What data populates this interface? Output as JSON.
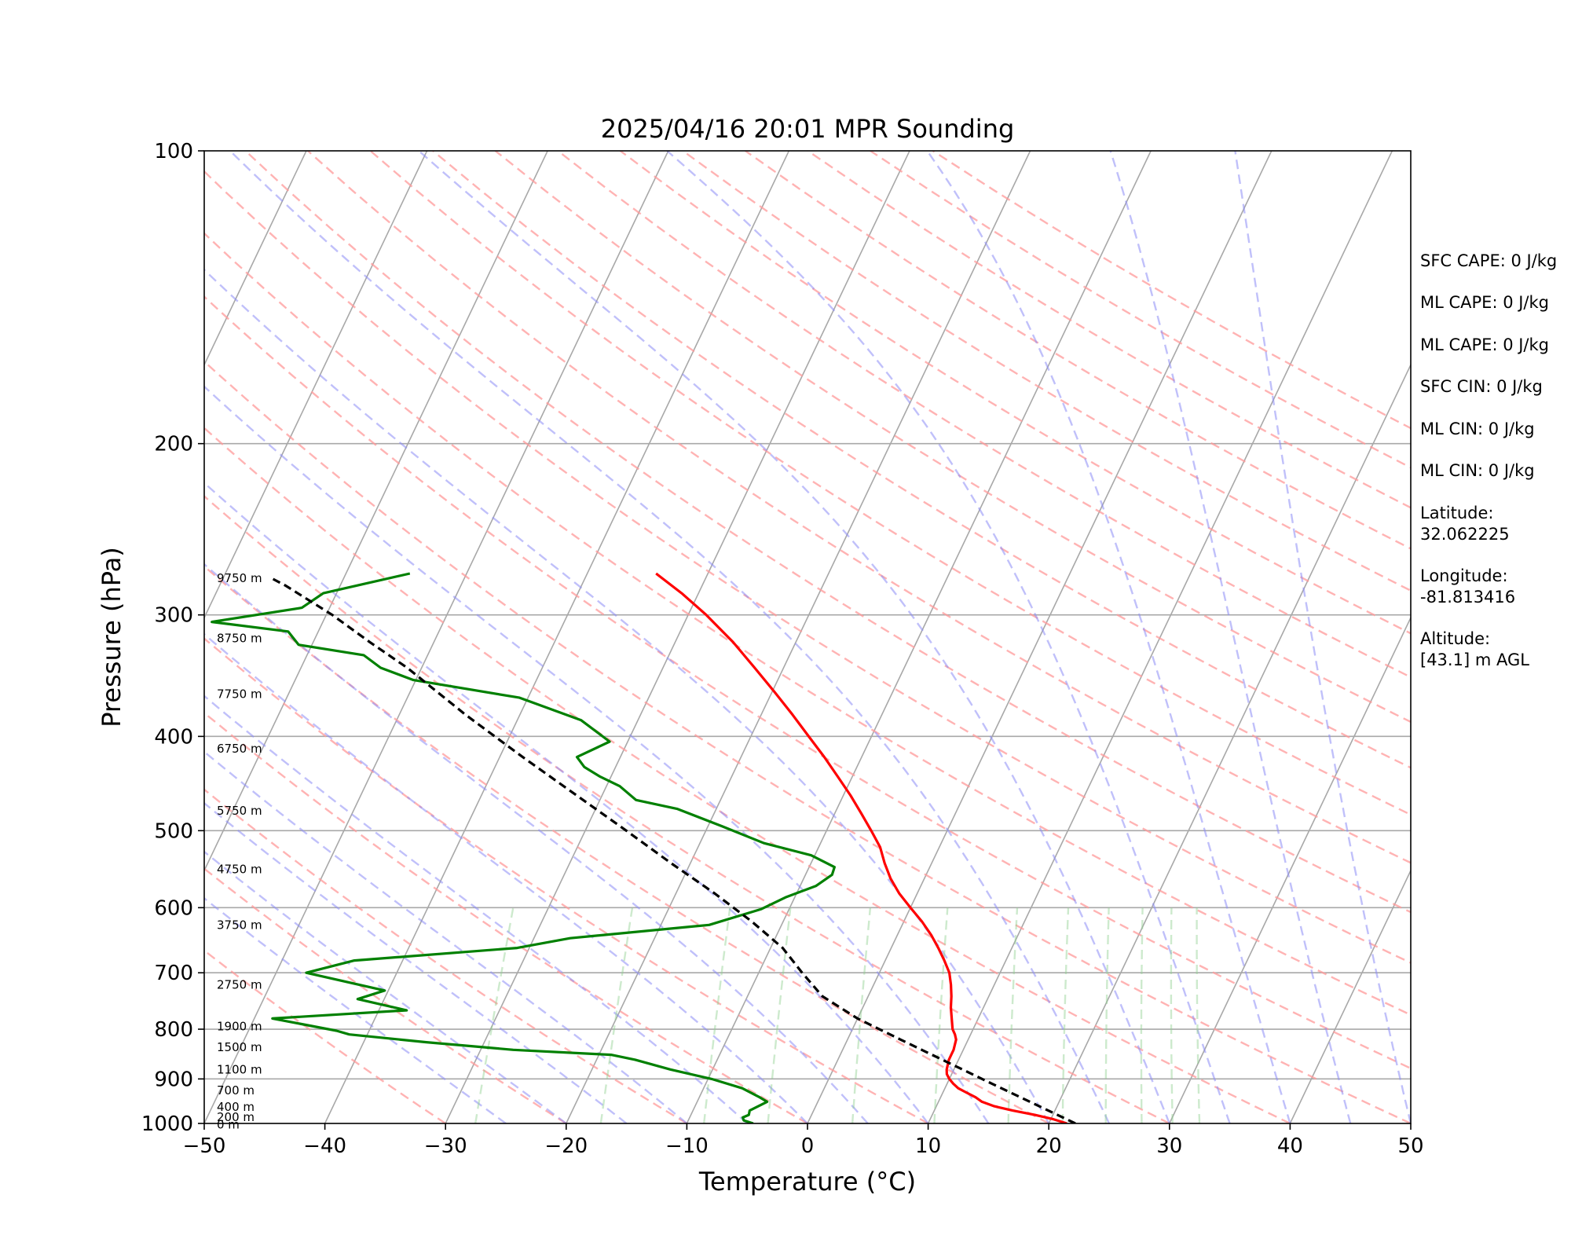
{
  "chart_data": {
    "type": "line",
    "title": "2025/04/16 20:01 MPR Sounding",
    "xlabel": "Temperature (°C)",
    "ylabel": "Pressure (hPa)",
    "xlim": [
      -50,
      50
    ],
    "ylim": [
      1000,
      100
    ],
    "y_scale": "log",
    "skew": true,
    "grid": true,
    "x_ticks": [
      -50,
      -40,
      -30,
      -20,
      -10,
      0,
      10,
      20,
      30,
      40,
      50
    ],
    "x_tick_labels": [
      "−50",
      "−40",
      "−30",
      "−20",
      "−10",
      "0",
      "10",
      "20",
      "30",
      "40",
      "50"
    ],
    "y_ticks": [
      1000,
      900,
      800,
      700,
      600,
      500,
      400,
      300,
      200,
      100
    ],
    "y_tick_labels": [
      "1000",
      "900",
      "800",
      "700",
      "600",
      "500",
      "400",
      "300",
      "200",
      "100"
    ],
    "colors": {
      "temperature": "#ff0000",
      "dewpoint": "#008000",
      "parcel": "#000000",
      "isotherm": "#a8a8a8",
      "dry_adiabat": "#ff9a9a",
      "moist_adiabat": "#8c8cf5",
      "mixing_ratio": "#90d090"
    },
    "series": [
      {
        "key": "temperature",
        "style": "solid",
        "points": [
          [
            21.5,
            1000
          ],
          [
            20.2,
            990
          ],
          [
            18.5,
            980
          ],
          [
            16.5,
            970
          ],
          [
            14.8,
            960
          ],
          [
            13.6,
            950
          ],
          [
            12.9,
            940
          ],
          [
            12.0,
            930
          ],
          [
            11.1,
            920
          ],
          [
            10.5,
            910
          ],
          [
            10.0,
            900
          ],
          [
            9.6,
            890
          ],
          [
            9.4,
            880
          ],
          [
            9.3,
            870
          ],
          [
            9.2,
            860
          ],
          [
            9.2,
            850
          ],
          [
            9.2,
            840
          ],
          [
            9.1,
            830
          ],
          [
            9.0,
            820
          ],
          [
            8.7,
            810
          ],
          [
            8.3,
            800
          ],
          [
            7.8,
            780
          ],
          [
            7.3,
            760
          ],
          [
            6.9,
            740
          ],
          [
            6.4,
            720
          ],
          [
            5.8,
            700
          ],
          [
            4.9,
            680
          ],
          [
            3.9,
            660
          ],
          [
            2.8,
            640
          ],
          [
            1.5,
            620
          ],
          [
            0.0,
            600
          ],
          [
            -1.5,
            580
          ],
          [
            -2.8,
            560
          ],
          [
            -3.9,
            540
          ],
          [
            -4.9,
            520
          ],
          [
            -6.3,
            500
          ],
          [
            -7.8,
            480
          ],
          [
            -9.4,
            460
          ],
          [
            -11.2,
            440
          ],
          [
            -13.1,
            420
          ],
          [
            -15.2,
            400
          ],
          [
            -17.4,
            380
          ],
          [
            -19.8,
            360
          ],
          [
            -22.4,
            340
          ],
          [
            -25.2,
            320
          ],
          [
            -28.5,
            300
          ],
          [
            -31.4,
            285
          ],
          [
            -34.3,
            272
          ]
        ]
      },
      {
        "key": "dewpoint",
        "style": "solid",
        "points": [
          [
            -4.5,
            1000
          ],
          [
            -5.4,
            993
          ],
          [
            -5.6,
            986
          ],
          [
            -5.2,
            980
          ],
          [
            -5.3,
            970
          ],
          [
            -4.2,
            950
          ],
          [
            -5.0,
            940
          ],
          [
            -6.8,
            920
          ],
          [
            -9.7,
            900
          ],
          [
            -13.5,
            880
          ],
          [
            -16.8,
            860
          ],
          [
            -19.0,
            850
          ],
          [
            -27.3,
            840
          ],
          [
            -34.8,
            825
          ],
          [
            -41.5,
            810
          ],
          [
            -42.7,
            803
          ],
          [
            -48.5,
            780
          ],
          [
            -37.7,
            765
          ],
          [
            -42.2,
            745
          ],
          [
            -40.3,
            730
          ],
          [
            -47.5,
            700
          ],
          [
            -44.0,
            680
          ],
          [
            -31.0,
            660
          ],
          [
            -27.0,
            645
          ],
          [
            -16.0,
            625
          ],
          [
            -12.3,
            602
          ],
          [
            -10.7,
            585
          ],
          [
            -8.7,
            570
          ],
          [
            -7.8,
            555
          ],
          [
            -7.9,
            545
          ],
          [
            -10.3,
            530
          ],
          [
            -14.7,
            515
          ],
          [
            -18.8,
            495
          ],
          [
            -23.2,
            475
          ],
          [
            -27.0,
            465
          ],
          [
            -28.9,
            450
          ],
          [
            -30.9,
            440
          ],
          [
            -32.6,
            430
          ],
          [
            -33.6,
            420
          ],
          [
            -31.5,
            405
          ],
          [
            -34.7,
            385
          ],
          [
            -40.7,
            365
          ],
          [
            -50.2,
            350
          ],
          [
            -53.4,
            340
          ],
          [
            -55.3,
            330
          ],
          [
            -61.1,
            322
          ],
          [
            -62.5,
            312
          ],
          [
            -69.2,
            305
          ],
          [
            -62.3,
            295
          ],
          [
            -61.1,
            285
          ],
          [
            -54.7,
            272
          ]
        ]
      },
      {
        "key": "parcel",
        "style": "dashed",
        "points": [
          [
            22.2,
            1000
          ],
          [
            13.7,
            910
          ],
          [
            4.4,
            820
          ],
          [
            0.0,
            780
          ],
          [
            -3.8,
            740
          ],
          [
            -6.4,
            700
          ],
          [
            -9.0,
            660
          ],
          [
            -12.6,
            620
          ],
          [
            -16.8,
            580
          ],
          [
            -21.6,
            540
          ],
          [
            -26.6,
            500
          ],
          [
            -32.1,
            460
          ],
          [
            -38.1,
            420
          ],
          [
            -44.5,
            380
          ],
          [
            -51.2,
            340
          ],
          [
            -55.3,
            320
          ],
          [
            -59.5,
            300
          ],
          [
            -64.5,
            280
          ],
          [
            -66.0,
            275
          ]
        ]
      }
    ],
    "height_labels": [
      {
        "label": "9750 m",
        "p": 275
      },
      {
        "label": "8750 m",
        "p": 317
      },
      {
        "label": "7750 m",
        "p": 362
      },
      {
        "label": "6750 m",
        "p": 412
      },
      {
        "label": "5750 m",
        "p": 477
      },
      {
        "label": "4750 m",
        "p": 548
      },
      {
        "label": "3750 m",
        "p": 625
      },
      {
        "label": "2750 m",
        "p": 720
      },
      {
        "label": "1900 m",
        "p": 795
      },
      {
        "label": "1500 m",
        "p": 835
      },
      {
        "label": "1100 m",
        "p": 880
      },
      {
        "label": "700 m",
        "p": 925
      },
      {
        "label": "400 m",
        "p": 962
      },
      {
        "label": "200 m",
        "p": 985
      },
      {
        "label": "0 m",
        "p": 1003
      }
    ]
  },
  "stats": [
    "SFC CAPE: 0 J/kg",
    "ML CAPE: 0 J/kg",
    "ML CAPE: 0 J/kg",
    "SFC CIN: 0 J/kg",
    "ML CIN: 0 J/kg",
    "ML CIN: 0 J/kg"
  ],
  "location": {
    "latitude_label": "Latitude:",
    "latitude_value": "32.062225",
    "longitude_label": "Longitude:",
    "longitude_value": "-81.813416",
    "altitude_label": "Altitude:",
    "altitude_value": "[43.1] m AGL"
  }
}
